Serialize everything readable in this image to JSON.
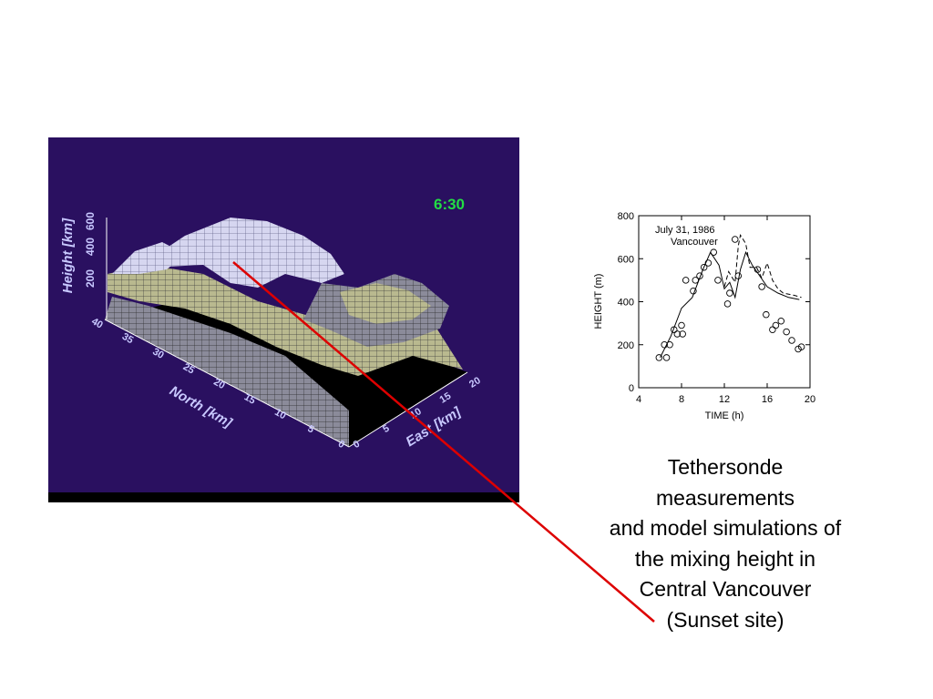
{
  "surface_panel": {
    "time_label": "6:30",
    "height_axis": {
      "label": "Height [km]",
      "ticks": [
        "600",
        "400",
        "200"
      ]
    },
    "north_axis": {
      "label": "North [km]",
      "ticks": [
        "40",
        "35",
        "30",
        "25",
        "20",
        "15",
        "10",
        "5",
        "0"
      ]
    },
    "east_axis": {
      "label": "East [km]",
      "ticks": [
        "0",
        "5",
        "10",
        "15",
        "20"
      ]
    },
    "colors": {
      "background": "#2a1060",
      "axis_text": "#c8c8ff",
      "time_label": "#22dd44"
    }
  },
  "chart_data": {
    "type": "scatter",
    "annotation_line1": "July 31, 1986",
    "annotation_line2": "Vancouver",
    "xlabel": "TIME (h)",
    "ylabel": "HEIGHT (m)",
    "xlim": [
      4,
      20
    ],
    "ylim": [
      0,
      800
    ],
    "xticks": [
      4,
      8,
      12,
      16,
      20
    ],
    "yticks": [
      0,
      200,
      400,
      600,
      800
    ],
    "series": [
      {
        "kind": "points",
        "x": [
          5.9,
          6.4,
          6.6,
          6.9,
          7.3,
          7.6,
          8.0,
          8.1,
          8.4,
          9.1,
          9.3,
          9.7,
          10.1,
          10.5,
          11.0,
          11.4,
          12.3,
          12.5,
          13.0,
          13.3,
          15.1,
          15.5,
          15.9,
          16.5,
          16.8,
          17.3,
          17.8,
          18.3,
          18.9,
          19.2
        ],
        "y": [
          140,
          200,
          140,
          200,
          270,
          250,
          290,
          250,
          500,
          450,
          500,
          520,
          560,
          580,
          630,
          500,
          390,
          440,
          690,
          520,
          550,
          470,
          340,
          270,
          290,
          310,
          260,
          220,
          180,
          190
        ]
      },
      {
        "kind": "solid_line",
        "x": [
          6.0,
          7.0,
          8.0,
          9.0,
          10.0,
          10.7,
          11.5,
          12.0,
          12.5,
          13.0,
          13.5,
          14.0,
          14.6,
          15.3,
          16.0,
          17.0,
          18.0,
          19.0
        ],
        "y": [
          140,
          240,
          370,
          420,
          550,
          630,
          570,
          460,
          490,
          420,
          550,
          630,
          570,
          520,
          470,
          440,
          420,
          410
        ]
      },
      {
        "kind": "dashed_line",
        "x": [
          12.0,
          12.4,
          13.0,
          13.3,
          13.5,
          14.0,
          14.4,
          15.0,
          15.5,
          16.0,
          16.5,
          17.0,
          17.5,
          18.5,
          19.2
        ],
        "y": [
          470,
          540,
          490,
          660,
          710,
          670,
          560,
          560,
          510,
          580,
          500,
          460,
          440,
          430,
          420
        ]
      }
    ]
  },
  "caption": {
    "lines": [
      "Tethersonde",
      "measurements",
      "and model simulations of",
      "the mixing height in",
      "Central Vancouver",
      "(Sunset site)"
    ]
  },
  "connector": {
    "color": "#dd0000"
  }
}
